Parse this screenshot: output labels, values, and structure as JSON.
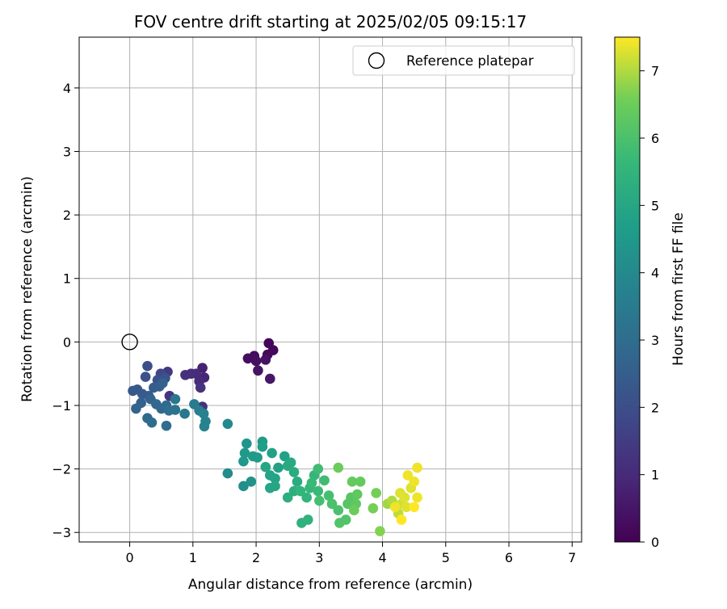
{
  "chart_data": {
    "type": "scatter",
    "title": "FOV centre drift starting at 2025/02/05 09:15:17",
    "xlabel": "Angular distance from reference (arcmin)",
    "ylabel": "Rotation from reference (arcmin)",
    "xlim": [
      -0.8,
      7.15
    ],
    "ylim": [
      -3.15,
      4.8
    ],
    "xticks": [
      0,
      1,
      2,
      3,
      4,
      5,
      6,
      7
    ],
    "yticks": [
      -3,
      -2,
      -1,
      0,
      1,
      2,
      3,
      4
    ],
    "xtick_labels": [
      "0",
      "1",
      "2",
      "3",
      "4",
      "5",
      "6",
      "7"
    ],
    "ytick_labels": [
      "−3",
      "−2",
      "−1",
      "0",
      "1",
      "2",
      "3",
      "4"
    ],
    "grid": true,
    "legend_position": "top-right",
    "reference": {
      "name": "Reference platepar",
      "x": 0,
      "y": 0,
      "marker": "open-circle"
    },
    "colorbar": {
      "label": "Hours from first FF file",
      "range": [
        0,
        7.5
      ],
      "ticks": [
        0,
        1,
        2,
        3,
        4,
        5,
        6,
        7
      ],
      "tick_labels": [
        "0",
        "1",
        "2",
        "3",
        "4",
        "5",
        "6",
        "7"
      ],
      "colormap": "viridis"
    },
    "series": [
      {
        "points": [
          {
            "x": 2.2,
            "y": -0.02,
            "c": 0.1
          },
          {
            "x": 2.27,
            "y": -0.13,
            "c": 0.15
          },
          {
            "x": 2.18,
            "y": -0.2,
            "c": 0.2
          },
          {
            "x": 1.97,
            "y": -0.22,
            "c": 0.25
          },
          {
            "x": 1.87,
            "y": -0.26,
            "c": 0.3
          },
          {
            "x": 2.0,
            "y": -0.3,
            "c": 0.35
          },
          {
            "x": 2.15,
            "y": -0.28,
            "c": 0.4
          },
          {
            "x": 2.03,
            "y": -0.45,
            "c": 0.45
          },
          {
            "x": 2.22,
            "y": -0.58,
            "c": 0.5
          },
          {
            "x": 1.15,
            "y": -0.41,
            "c": 0.8
          },
          {
            "x": 1.18,
            "y": -0.56,
            "c": 0.9
          },
          {
            "x": 1.1,
            "y": -0.62,
            "c": 1.0
          },
          {
            "x": 1.05,
            "y": -0.5,
            "c": 1.05
          },
          {
            "x": 0.97,
            "y": -0.5,
            "c": 1.1
          },
          {
            "x": 0.88,
            "y": -0.52,
            "c": 1.15
          },
          {
            "x": 1.12,
            "y": -0.72,
            "c": 1.2
          },
          {
            "x": 0.63,
            "y": -0.85,
            "c": 1.3
          },
          {
            "x": 0.6,
            "y": -0.47,
            "c": 1.4
          },
          {
            "x": 1.15,
            "y": -1.02,
            "c": 1.2
          },
          {
            "x": 0.49,
            "y": -0.5,
            "c": 1.8
          },
          {
            "x": 0.28,
            "y": -0.38,
            "c": 2.0
          },
          {
            "x": 0.25,
            "y": -0.55,
            "c": 2.1
          },
          {
            "x": 0.44,
            "y": -0.6,
            "c": 2.1
          },
          {
            "x": 0.56,
            "y": -0.57,
            "c": 2.2
          },
          {
            "x": 0.05,
            "y": -0.77,
            "c": 2.3
          },
          {
            "x": 0.12,
            "y": -0.75,
            "c": 2.3
          },
          {
            "x": 0.2,
            "y": -0.82,
            "c": 2.4
          },
          {
            "x": 0.3,
            "y": -0.85,
            "c": 2.4
          },
          {
            "x": 0.38,
            "y": -0.72,
            "c": 2.5
          },
          {
            "x": 0.47,
            "y": -0.7,
            "c": 2.5
          },
          {
            "x": 0.52,
            "y": -0.65,
            "c": 2.6
          },
          {
            "x": 0.18,
            "y": -0.96,
            "c": 2.6
          },
          {
            "x": 0.1,
            "y": -1.05,
            "c": 2.7
          },
          {
            "x": 0.33,
            "y": -0.9,
            "c": 2.7
          },
          {
            "x": 0.42,
            "y": -0.98,
            "c": 2.8
          },
          {
            "x": 0.5,
            "y": -1.05,
            "c": 2.8
          },
          {
            "x": 0.58,
            "y": -1.0,
            "c": 2.9
          },
          {
            "x": 0.28,
            "y": -1.2,
            "c": 2.9
          },
          {
            "x": 0.35,
            "y": -1.27,
            "c": 3.0
          },
          {
            "x": 0.58,
            "y": -1.32,
            "c": 3.0
          },
          {
            "x": 0.62,
            "y": -1.08,
            "c": 3.1
          },
          {
            "x": 0.72,
            "y": -1.07,
            "c": 3.2
          },
          {
            "x": 0.72,
            "y": -0.9,
            "c": 3.3
          },
          {
            "x": 0.87,
            "y": -1.13,
            "c": 3.4
          },
          {
            "x": 1.02,
            "y": -0.98,
            "c": 3.5
          },
          {
            "x": 1.1,
            "y": -1.08,
            "c": 3.6
          },
          {
            "x": 1.17,
            "y": -1.13,
            "c": 3.7
          },
          {
            "x": 1.18,
            "y": -1.33,
            "c": 3.8
          },
          {
            "x": 1.2,
            "y": -1.25,
            "c": 3.8
          },
          {
            "x": 1.55,
            "y": -1.29,
            "c": 4.0
          },
          {
            "x": 1.55,
            "y": -2.07,
            "c": 4.1
          },
          {
            "x": 1.8,
            "y": -2.27,
            "c": 4.2
          },
          {
            "x": 1.92,
            "y": -2.2,
            "c": 4.3
          },
          {
            "x": 1.85,
            "y": -1.6,
            "c": 4.4
          },
          {
            "x": 1.82,
            "y": -1.75,
            "c": 4.5
          },
          {
            "x": 1.8,
            "y": -1.88,
            "c": 4.5
          },
          {
            "x": 1.95,
            "y": -1.8,
            "c": 4.6
          },
          {
            "x": 2.02,
            "y": -1.82,
            "c": 4.6
          },
          {
            "x": 2.1,
            "y": -1.57,
            "c": 4.6
          },
          {
            "x": 2.1,
            "y": -1.65,
            "c": 4.7
          },
          {
            "x": 2.25,
            "y": -1.75,
            "c": 4.8
          },
          {
            "x": 2.35,
            "y": -1.98,
            "c": 4.8
          },
          {
            "x": 2.45,
            "y": -1.8,
            "c": 4.8
          },
          {
            "x": 2.22,
            "y": -2.1,
            "c": 4.9
          },
          {
            "x": 2.3,
            "y": -2.15,
            "c": 4.9
          },
          {
            "x": 2.22,
            "y": -2.3,
            "c": 5.0
          },
          {
            "x": 2.3,
            "y": -2.27,
            "c": 5.0
          },
          {
            "x": 2.15,
            "y": -1.97,
            "c": 5.0
          },
          {
            "x": 2.5,
            "y": -1.95,
            "c": 5.1
          },
          {
            "x": 2.55,
            "y": -1.9,
            "c": 5.1
          },
          {
            "x": 2.6,
            "y": -2.05,
            "c": 5.2
          },
          {
            "x": 2.65,
            "y": -2.2,
            "c": 5.2
          },
          {
            "x": 2.5,
            "y": -2.45,
            "c": 5.3
          },
          {
            "x": 2.6,
            "y": -2.35,
            "c": 5.3
          },
          {
            "x": 2.72,
            "y": -2.85,
            "c": 5.4
          },
          {
            "x": 2.82,
            "y": -2.8,
            "c": 5.4
          },
          {
            "x": 2.7,
            "y": -2.35,
            "c": 5.5
          },
          {
            "x": 2.8,
            "y": -2.45,
            "c": 5.5
          },
          {
            "x": 2.85,
            "y": -2.3,
            "c": 5.6
          },
          {
            "x": 2.92,
            "y": -2.1,
            "c": 5.6
          },
          {
            "x": 2.88,
            "y": -2.22,
            "c": 5.7
          },
          {
            "x": 2.98,
            "y": -2.35,
            "c": 5.7
          },
          {
            "x": 2.98,
            "y": -2.0,
            "c": 5.8
          },
          {
            "x": 3.08,
            "y": -2.18,
            "c": 5.8
          },
          {
            "x": 3.15,
            "y": -2.42,
            "c": 5.9
          },
          {
            "x": 3.0,
            "y": -2.5,
            "c": 5.9
          },
          {
            "x": 3.2,
            "y": -2.55,
            "c": 6.0
          },
          {
            "x": 3.3,
            "y": -2.65,
            "c": 6.0
          },
          {
            "x": 3.32,
            "y": -2.85,
            "c": 6.1
          },
          {
            "x": 3.42,
            "y": -2.8,
            "c": 6.1
          },
          {
            "x": 3.45,
            "y": -2.55,
            "c": 6.2
          },
          {
            "x": 3.5,
            "y": -2.45,
            "c": 6.2
          },
          {
            "x": 3.58,
            "y": -2.55,
            "c": 6.3
          },
          {
            "x": 3.6,
            "y": -2.4,
            "c": 6.3
          },
          {
            "x": 3.52,
            "y": -2.2,
            "c": 6.4
          },
          {
            "x": 3.65,
            "y": -2.2,
            "c": 6.4
          },
          {
            "x": 3.3,
            "y": -1.98,
            "c": 6.5
          },
          {
            "x": 3.55,
            "y": -2.65,
            "c": 6.5
          },
          {
            "x": 3.9,
            "y": -2.38,
            "c": 6.6
          },
          {
            "x": 3.85,
            "y": -2.62,
            "c": 6.6
          },
          {
            "x": 3.96,
            "y": -2.98,
            "c": 6.7
          },
          {
            "x": 4.08,
            "y": -2.55,
            "c": 6.9
          },
          {
            "x": 4.15,
            "y": -2.5,
            "c": 7.0
          },
          {
            "x": 4.25,
            "y": -2.7,
            "c": 7.1
          },
          {
            "x": 4.3,
            "y": -2.55,
            "c": 7.2
          },
          {
            "x": 4.35,
            "y": -2.45,
            "c": 7.3
          },
          {
            "x": 4.38,
            "y": -2.6,
            "c": 7.3
          },
          {
            "x": 4.45,
            "y": -2.3,
            "c": 7.3
          },
          {
            "x": 4.4,
            "y": -2.1,
            "c": 7.4
          },
          {
            "x": 4.5,
            "y": -2.2,
            "c": 7.4
          },
          {
            "x": 4.55,
            "y": -1.98,
            "c": 7.4
          },
          {
            "x": 4.55,
            "y": -2.45,
            "c": 7.4
          },
          {
            "x": 4.5,
            "y": -2.6,
            "c": 7.5
          },
          {
            "x": 4.3,
            "y": -2.8,
            "c": 7.5
          },
          {
            "x": 4.2,
            "y": -2.6,
            "c": 7.4
          },
          {
            "x": 4.28,
            "y": -2.38,
            "c": 7.3
          }
        ]
      }
    ]
  }
}
